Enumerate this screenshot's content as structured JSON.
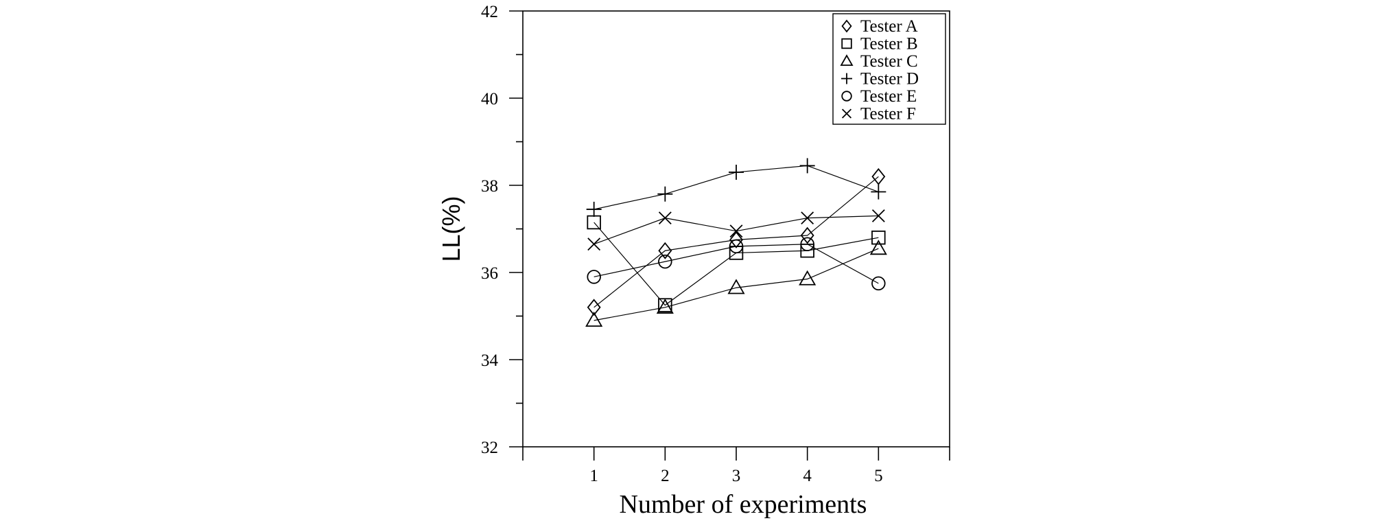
{
  "chart_data": {
    "type": "line",
    "xlabel": "Number of experiments",
    "ylabel": "LL(%)",
    "x": [
      1,
      2,
      3,
      4,
      5
    ],
    "xlim": [
      0,
      6
    ],
    "ylim": [
      32,
      42
    ],
    "xticks": [
      "1",
      "2",
      "3",
      "4",
      "5"
    ],
    "yticks": [
      "32",
      "34",
      "36",
      "38",
      "40",
      "42"
    ],
    "legend_position": "top-right",
    "grid": false,
    "series": [
      {
        "name": "Tester A",
        "marker": "diamond",
        "values": [
          35.2,
          36.5,
          36.75,
          36.85,
          38.2
        ]
      },
      {
        "name": "Tester B",
        "marker": "square",
        "values": [
          37.15,
          35.25,
          36.45,
          36.5,
          36.8
        ]
      },
      {
        "name": "Tester C",
        "marker": "triangle",
        "values": [
          34.9,
          35.2,
          35.65,
          35.85,
          36.55
        ]
      },
      {
        "name": "Tester D",
        "marker": "plus",
        "values": [
          37.45,
          37.8,
          38.3,
          38.45,
          37.85
        ]
      },
      {
        "name": "Tester E",
        "marker": "circle",
        "values": [
          35.9,
          36.25,
          36.6,
          36.65,
          35.75
        ]
      },
      {
        "name": "Tester F",
        "marker": "cross",
        "values": [
          36.65,
          37.25,
          36.95,
          37.25,
          37.3
        ]
      }
    ]
  }
}
